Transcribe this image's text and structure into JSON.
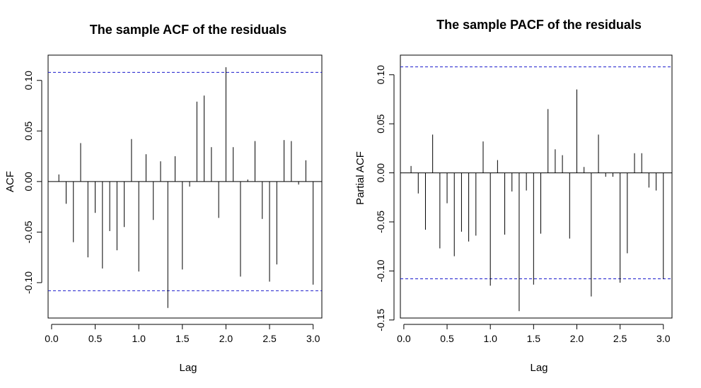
{
  "chart_data": [
    {
      "type": "bar",
      "title": "The sample ACF of the residuals",
      "xlabel": "Lag",
      "ylabel": "ACF",
      "x_ticks": [
        "0.0",
        "0.5",
        "1.0",
        "1.5",
        "2.0",
        "2.5",
        "3.0"
      ],
      "y_ticks": [
        "-0.10",
        "-0.05",
        "0.00",
        "0.05",
        "0.10"
      ],
      "xlim": [
        -0.04,
        3.1
      ],
      "ylim": [
        -0.135,
        0.125
      ],
      "confidence_bound": 0.108,
      "lags": [
        0.0833,
        0.1667,
        0.25,
        0.3333,
        0.4167,
        0.5,
        0.5833,
        0.6667,
        0.75,
        0.8333,
        0.9167,
        1.0,
        1.0833,
        1.1667,
        1.25,
        1.3333,
        1.4167,
        1.5,
        1.5833,
        1.6667,
        1.75,
        1.8333,
        1.9167,
        2.0,
        2.0833,
        2.1667,
        2.25,
        2.3333,
        2.4167,
        2.5,
        2.5833,
        2.6667,
        2.75,
        2.8333,
        2.9167,
        3.0
      ],
      "values": [
        0.007,
        -0.022,
        -0.06,
        0.038,
        -0.075,
        -0.031,
        -0.086,
        -0.049,
        -0.068,
        -0.045,
        0.042,
        -0.089,
        0.027,
        -0.038,
        0.02,
        -0.125,
        0.025,
        -0.087,
        -0.005,
        0.079,
        0.085,
        0.034,
        -0.036,
        0.113,
        0.034,
        -0.094,
        0.002,
        0.04,
        -0.037,
        -0.099,
        -0.082,
        0.041,
        0.04,
        -0.003,
        0.021,
        -0.102
      ]
    },
    {
      "type": "bar",
      "title": "The sample PACF of the residuals",
      "xlabel": "Lag",
      "ylabel": "Partial ACF",
      "x_ticks": [
        "0.0",
        "0.5",
        "1.0",
        "1.5",
        "2.0",
        "2.5",
        "3.0"
      ],
      "y_ticks": [
        "-0.15",
        "-0.10",
        "-0.05",
        "0.00",
        "0.05",
        "0.10"
      ],
      "xlim": [
        -0.04,
        3.1
      ],
      "ylim": [
        -0.148,
        0.12
      ],
      "confidence_bound": 0.108,
      "lags": [
        0.0833,
        0.1667,
        0.25,
        0.3333,
        0.4167,
        0.5,
        0.5833,
        0.6667,
        0.75,
        0.8333,
        0.9167,
        1.0,
        1.0833,
        1.1667,
        1.25,
        1.3333,
        1.4167,
        1.5,
        1.5833,
        1.6667,
        1.75,
        1.8333,
        1.9167,
        2.0,
        2.0833,
        2.1667,
        2.25,
        2.3333,
        2.4167,
        2.5,
        2.5833,
        2.6667,
        2.75,
        2.8333,
        2.9167,
        3.0
      ],
      "values": [
        0.007,
        -0.021,
        -0.058,
        0.039,
        -0.077,
        -0.031,
        -0.085,
        -0.06,
        -0.07,
        -0.064,
        0.032,
        -0.115,
        0.013,
        -0.063,
        -0.019,
        -0.141,
        -0.018,
        -0.114,
        -0.062,
        0.065,
        0.024,
        0.018,
        -0.067,
        0.085,
        0.006,
        -0.126,
        0.039,
        -0.004,
        -0.004,
        -0.112,
        -0.082,
        0.02,
        0.02,
        -0.015,
        -0.018,
        -0.108
      ]
    }
  ]
}
